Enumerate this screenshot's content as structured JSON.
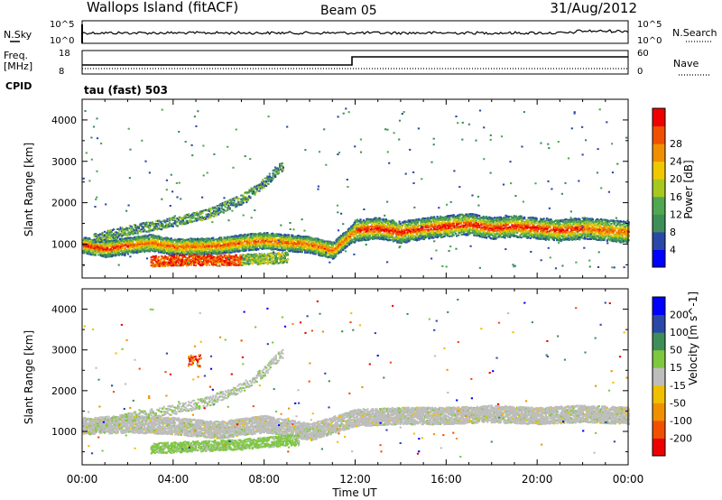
{
  "header": {
    "title": "Wallops Island (fitACF)",
    "beam": "Beam 05",
    "date": "31/Aug/2012"
  },
  "noise_panel": {
    "left_label": "N.Sky",
    "left_ticks": [
      "10^5",
      "10^0"
    ],
    "right_ticks": [
      "10^5",
      "10^0"
    ],
    "right_label": "N.Search"
  },
  "freq_panel": {
    "left_label_1": "Freq.",
    "left_label_2": "[MHz]",
    "left_ticks": [
      "18",
      "8"
    ],
    "right_ticks": [
      "60",
      "0"
    ],
    "right_label": "Nave",
    "cpid_label": "CPID",
    "cpid_text": "tau (fast) 503"
  },
  "colors": {
    "power": [
      "#0000ff",
      "#2a48a8",
      "#3d8e58",
      "#4fa84f",
      "#a8c820",
      "#f0c800",
      "#f09000",
      "#f05000",
      "#ee0000"
    ],
    "velocity": [
      "#ee0000",
      "#f05000",
      "#f09000",
      "#f0c000",
      "#bdbdbd",
      "#7dc840",
      "#3d8e58",
      "#2a48a8",
      "#0000ff"
    ]
  },
  "chart_data": [
    {
      "type": "heatmap",
      "title": "",
      "xlabel": "Time UT",
      "ylabel": "Slant Range [km]",
      "colorbar_label": "Power [dB]",
      "colorbar_ticks": [
        "4",
        "8",
        "12",
        "16",
        "20",
        "24",
        "28"
      ],
      "x_ticks": [
        "00:00",
        "04:00",
        "08:00",
        "12:00",
        "16:00",
        "20:00",
        "00:00"
      ],
      "y_ticks": [
        "1000",
        "2000",
        "3000",
        "4000"
      ],
      "xlim": [
        0,
        24
      ],
      "ylim": [
        180,
        4500
      ],
      "series": [
        {
          "x": [
            0,
            1,
            2,
            3,
            4,
            5,
            6,
            7,
            8,
            9,
            10,
            11,
            12,
            13,
            14,
            15,
            16,
            17,
            18,
            19,
            20,
            21,
            22,
            23,
            24
          ],
          "y": [
            1000,
            900,
            980,
            1050,
            950,
            960,
            980,
            1050,
            1100,
            1050,
            1000,
            860,
            1350,
            1400,
            1300,
            1400,
            1450,
            1500,
            1400,
            1450,
            1400,
            1350,
            1400,
            1350,
            1300
          ]
        },
        {
          "x": [
            0.5,
            2,
            4,
            5.5,
            7,
            8,
            8.7
          ],
          "y": [
            1150,
            1350,
            1550,
            1750,
            2100,
            2500,
            2900
          ]
        },
        {
          "x": [
            3,
            4,
            5,
            6,
            7,
            8,
            9
          ],
          "y": [
            600,
            620,
            630,
            620,
            640,
            660,
            700
          ]
        }
      ]
    },
    {
      "type": "heatmap",
      "title": "",
      "xlabel": "Time UT",
      "ylabel": "Slant Range [km]",
      "colorbar_label": "Velocity [m s^-1]",
      "colorbar_ticks": [
        "200",
        "100",
        "50",
        "15",
        "-15",
        "-50",
        "-100",
        "-200"
      ],
      "x_ticks": [
        "00:00",
        "04:00",
        "08:00",
        "12:00",
        "16:00",
        "20:00",
        "00:00"
      ],
      "y_ticks": [
        "1000",
        "2000",
        "3000",
        "4000"
      ],
      "xlim": [
        0,
        24
      ],
      "ylim": [
        180,
        4500
      ],
      "series": [
        {
          "name": "",
          "x": [
            0,
            2,
            4,
            6,
            8,
            10,
            12,
            14,
            16,
            18,
            20,
            22,
            24
          ],
          "y": [
            1150,
            1200,
            1150,
            1050,
            1200,
            1000,
            1350,
            1400,
            1400,
            1450,
            1400,
            1450,
            1400
          ]
        },
        {
          "x": [
            3,
            5,
            7,
            9
          ],
          "y": [
            600,
            650,
            700,
            800
          ]
        }
      ]
    }
  ]
}
